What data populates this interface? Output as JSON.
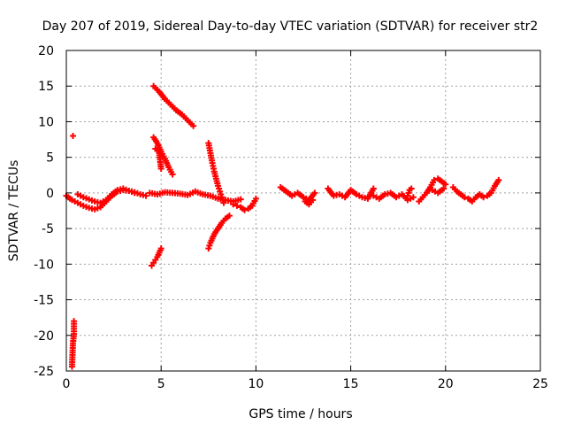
{
  "chart_data": {
    "type": "scatter",
    "title": "Day 207 of 2019, Sidereal Day-to-day VTEC variation (SDTVAR) for receiver str2",
    "xlabel": "GPS time / hours",
    "ylabel": "SDTVAR / TECUs",
    "xlim": [
      0,
      25
    ],
    "ylim": [
      -25,
      20
    ],
    "xticks": [
      0,
      5,
      10,
      15,
      20,
      25
    ],
    "yticks": [
      -25,
      -20,
      -15,
      -10,
      -5,
      0,
      5,
      10,
      15,
      20
    ],
    "grid": true,
    "marker": "plus",
    "color": "#ff0000",
    "segments": [
      {
        "x": [
          0.0,
          0.3,
          0.6,
          0.9,
          1.2,
          1.5,
          1.8,
          2.1,
          2.4,
          2.7,
          3.0,
          3.3,
          3.6,
          3.9,
          4.2
        ],
        "y": [
          -0.4,
          -1.0,
          -1.4,
          -1.8,
          -2.1,
          -2.3,
          -2.0,
          -1.2,
          -0.4,
          0.2,
          0.4,
          0.3,
          0.1,
          -0.2,
          -0.4
        ]
      },
      {
        "x": [
          0.6,
          0.9,
          1.2,
          1.5,
          1.8,
          2.1,
          2.4,
          2.7,
          3.0,
          3.3,
          3.6
        ],
        "y": [
          -0.2,
          -0.6,
          -0.9,
          -1.2,
          -1.4,
          -1.0,
          -0.2,
          0.4,
          0.6,
          0.3,
          0.0
        ]
      },
      {
        "x": [
          0.35,
          0.4,
          0.4,
          0.35,
          0.3
        ],
        "y": [
          8.0,
          -18.0,
          -19.8,
          -21.1,
          -24.4
        ]
      },
      {
        "x": [
          4.6,
          4.9,
          5.2,
          5.5,
          5.8,
          6.1,
          6.4,
          6.7
        ],
        "y": [
          15.0,
          14.2,
          13.2,
          12.4,
          11.6,
          11.0,
          10.2,
          9.4
        ]
      },
      {
        "x": [
          4.6,
          4.8,
          5.0,
          5.2,
          5.4,
          5.6
        ],
        "y": [
          7.8,
          7.0,
          5.8,
          4.8,
          3.6,
          2.6
        ]
      },
      {
        "x": [
          4.7,
          4.8,
          4.9,
          5.0
        ],
        "y": [
          6.2,
          5.9,
          5.6,
          3.4
        ]
      },
      {
        "x": [
          4.5,
          4.6,
          4.7,
          4.8,
          4.9,
          5.0
        ],
        "y": [
          -10.2,
          -9.8,
          -9.4,
          -9.0,
          -8.4,
          -7.8
        ]
      },
      {
        "x": [
          4.4,
          4.8,
          5.2,
          5.6,
          6.0,
          6.4,
          6.8,
          7.2,
          7.6,
          8.0,
          8.4,
          8.8,
          9.2
        ],
        "y": [
          0.0,
          -0.2,
          0.1,
          0.0,
          -0.1,
          -0.3,
          0.2,
          -0.2,
          -0.4,
          -0.8,
          -1.0,
          -1.2,
          -0.9
        ]
      },
      {
        "x": [
          7.5,
          7.6,
          7.7,
          7.8,
          7.9,
          8.0,
          8.1,
          8.2,
          8.3
        ],
        "y": [
          7.0,
          5.6,
          4.2,
          3.0,
          2.0,
          1.0,
          0.2,
          -0.6,
          -1.4
        ]
      },
      {
        "x": [
          7.5,
          7.6,
          7.7,
          7.8,
          8.0,
          8.2,
          8.4,
          8.6
        ],
        "y": [
          -7.8,
          -7.0,
          -6.4,
          -5.8,
          -5.0,
          -4.2,
          -3.6,
          -3.2
        ]
      },
      {
        "x": [
          8.8,
          9.0,
          9.2,
          9.4,
          9.6,
          9.8,
          10.0
        ],
        "y": [
          -1.6,
          -1.8,
          -2.0,
          -2.4,
          -2.2,
          -1.8,
          -0.8
        ]
      },
      {
        "x": [
          11.3,
          11.6,
          11.9,
          12.2,
          12.5,
          12.8,
          13.1
        ],
        "y": [
          0.8,
          0.2,
          -0.4,
          0.0,
          -0.6,
          -1.0,
          0.0
        ]
      },
      {
        "x": [
          12.6,
          12.8,
          13.0
        ],
        "y": [
          -1.2,
          -1.6,
          -1.0
        ]
      },
      {
        "x": [
          13.8,
          14.1,
          14.4,
          14.7,
          15.0,
          15.3,
          15.6,
          15.9,
          16.2
        ],
        "y": [
          0.6,
          -0.4,
          -0.2,
          -0.6,
          0.4,
          -0.2,
          -0.6,
          -0.8,
          0.6
        ]
      },
      {
        "x": [
          16.2,
          16.5,
          16.8,
          17.1,
          17.4,
          17.7,
          18.0,
          18.3
        ],
        "y": [
          -0.4,
          -0.8,
          -0.2,
          0.0,
          -0.6,
          -0.2,
          -1.0,
          -0.6
        ]
      },
      {
        "x": [
          18.0,
          18.1,
          18.2
        ],
        "y": [
          -0.4,
          0.4,
          0.6
        ]
      },
      {
        "x": [
          18.6,
          18.8,
          19.0,
          19.2,
          19.4,
          19.6,
          19.8,
          20.0
        ],
        "y": [
          -1.2,
          -0.6,
          0.0,
          0.8,
          1.8,
          2.0,
          1.6,
          1.2
        ]
      },
      {
        "x": [
          19.3,
          19.6,
          19.9
        ],
        "y": [
          0.4,
          0.0,
          0.6
        ]
      },
      {
        "x": [
          20.4,
          20.6,
          20.8,
          21.0,
          21.2,
          21.4,
          21.6,
          21.8,
          22.0
        ],
        "y": [
          0.8,
          0.2,
          -0.2,
          -0.6,
          -0.8,
          -1.2,
          -0.6,
          -0.2,
          -0.6
        ]
      },
      {
        "x": [
          22.2,
          22.4,
          22.6,
          22.8
        ],
        "y": [
          -0.4,
          0.0,
          1.0,
          1.8
        ]
      }
    ]
  }
}
